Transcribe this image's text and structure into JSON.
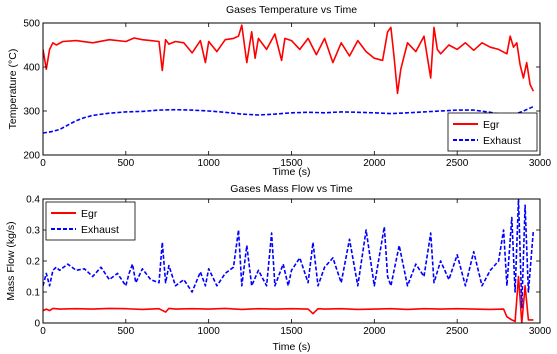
{
  "chart_data": [
    {
      "type": "line",
      "title": "Gases Temperature vs Time",
      "xlabel": "Time (s)",
      "ylabel": "Temperature (°C)",
      "xlim": [
        0,
        3000
      ],
      "ylim": [
        200,
        500
      ],
      "xticks": [
        0,
        500,
        1000,
        1500,
        2000,
        2500,
        3000
      ],
      "yticks": [
        200,
        300,
        400,
        500
      ],
      "legend_position": "bottom-right",
      "grid": false,
      "series": [
        {
          "name": "Egr",
          "color": "#ff0000",
          "style": "solid",
          "x": [
            0,
            20,
            40,
            60,
            80,
            120,
            200,
            300,
            400,
            500,
            550,
            600,
            650,
            700,
            720,
            740,
            760,
            800,
            850,
            900,
            950,
            980,
            1000,
            1050,
            1100,
            1150,
            1180,
            1200,
            1230,
            1260,
            1280,
            1300,
            1350,
            1400,
            1440,
            1460,
            1500,
            1550,
            1600,
            1650,
            1700,
            1750,
            1800,
            1850,
            1900,
            1950,
            2000,
            2050,
            2080,
            2100,
            2120,
            2140,
            2160,
            2200,
            2250,
            2300,
            2340,
            2360,
            2380,
            2400,
            2450,
            2500,
            2550,
            2600,
            2650,
            2700,
            2750,
            2800,
            2820,
            2840,
            2860,
            2880,
            2900,
            2920,
            2940,
            2960
          ],
          "y": [
            440,
            395,
            440,
            455,
            450,
            458,
            460,
            455,
            462,
            458,
            466,
            462,
            460,
            458,
            392,
            462,
            452,
            458,
            455,
            432,
            460,
            410,
            458,
            435,
            462,
            465,
            470,
            495,
            410,
            480,
            420,
            465,
            440,
            475,
            415,
            465,
            460,
            440,
            465,
            428,
            465,
            410,
            455,
            425,
            460,
            435,
            420,
            415,
            480,
            490,
            420,
            340,
            395,
            455,
            435,
            470,
            375,
            490,
            440,
            430,
            450,
            440,
            455,
            438,
            455,
            445,
            440,
            430,
            470,
            445,
            455,
            405,
            375,
            410,
            360,
            345
          ]
        },
        {
          "name": "Exhaust",
          "color": "#0000ff",
          "style": "dashed",
          "x": [
            0,
            50,
            100,
            150,
            200,
            250,
            300,
            400,
            500,
            600,
            700,
            800,
            900,
            1000,
            1100,
            1200,
            1300,
            1400,
            1500,
            1600,
            1700,
            1800,
            1900,
            2000,
            2100,
            2200,
            2300,
            2400,
            2500,
            2600,
            2700,
            2800,
            2850,
            2900,
            2960
          ],
          "y": [
            250,
            253,
            258,
            268,
            278,
            285,
            290,
            295,
            298,
            299,
            302,
            303,
            302,
            300,
            297,
            293,
            291,
            293,
            296,
            297,
            296,
            298,
            297,
            296,
            294,
            296,
            298,
            300,
            302,
            302,
            297,
            290,
            293,
            300,
            310
          ]
        }
      ]
    },
    {
      "type": "line",
      "title": "Gases Mass Flow vs Time",
      "xlabel": "Time (s)",
      "ylabel": "Mass Flow (kg/s)",
      "xlim": [
        0,
        3000
      ],
      "ylim": [
        0,
        0.4
      ],
      "xticks": [
        0,
        500,
        1000,
        1500,
        2000,
        2500,
        3000
      ],
      "yticks": [
        0,
        0.1,
        0.2,
        0.3,
        0.4
      ],
      "legend_position": "top-left",
      "grid": false,
      "series": [
        {
          "name": "Egr",
          "color": "#ff0000",
          "style": "solid",
          "x": [
            0,
            20,
            40,
            60,
            100,
            200,
            300,
            400,
            500,
            600,
            700,
            740,
            760,
            800,
            900,
            1000,
            1100,
            1200,
            1300,
            1400,
            1500,
            1600,
            1630,
            1660,
            1700,
            1800,
            1900,
            2000,
            2100,
            2200,
            2300,
            2400,
            2500,
            2600,
            2700,
            2780,
            2800,
            2830,
            2850,
            2870,
            2890,
            2910,
            2930,
            2960
          ],
          "y": [
            0.04,
            0.045,
            0.04,
            0.047,
            0.045,
            0.046,
            0.045,
            0.047,
            0.046,
            0.044,
            0.046,
            0.035,
            0.047,
            0.045,
            0.046,
            0.045,
            0.047,
            0.044,
            0.046,
            0.045,
            0.046,
            0.045,
            0.03,
            0.046,
            0.045,
            0.046,
            0.044,
            0.045,
            0.046,
            0.044,
            0.046,
            0.045,
            0.046,
            0.045,
            0.044,
            0.045,
            0.02,
            0.01,
            0.005,
            0.15,
            0.0,
            0.12,
            0.01,
            0.01
          ]
        },
        {
          "name": "Exhaust",
          "color": "#0000ff",
          "style": "dashed",
          "x": [
            0,
            20,
            40,
            60,
            80,
            100,
            150,
            200,
            250,
            300,
            350,
            400,
            450,
            500,
            520,
            540,
            560,
            600,
            650,
            700,
            720,
            740,
            760,
            800,
            850,
            900,
            950,
            980,
            1000,
            1050,
            1100,
            1150,
            1180,
            1200,
            1230,
            1260,
            1300,
            1350,
            1380,
            1400,
            1450,
            1480,
            1500,
            1550,
            1600,
            1630,
            1660,
            1700,
            1750,
            1800,
            1850,
            1900,
            1950,
            2000,
            2060,
            2080,
            2100,
            2150,
            2200,
            2250,
            2300,
            2340,
            2360,
            2400,
            2450,
            2500,
            2550,
            2600,
            2650,
            2700,
            2750,
            2780,
            2800,
            2830,
            2850,
            2870,
            2890,
            2910,
            2930,
            2960
          ],
          "y": [
            0.12,
            0.16,
            0.12,
            0.17,
            0.18,
            0.17,
            0.19,
            0.17,
            0.175,
            0.15,
            0.18,
            0.14,
            0.16,
            0.12,
            0.16,
            0.19,
            0.13,
            0.175,
            0.14,
            0.13,
            0.26,
            0.13,
            0.185,
            0.12,
            0.14,
            0.1,
            0.165,
            0.12,
            0.175,
            0.12,
            0.16,
            0.18,
            0.3,
            0.12,
            0.25,
            0.12,
            0.17,
            0.12,
            0.29,
            0.12,
            0.19,
            0.12,
            0.17,
            0.21,
            0.13,
            0.26,
            0.12,
            0.18,
            0.21,
            0.13,
            0.27,
            0.12,
            0.3,
            0.12,
            0.31,
            0.15,
            0.12,
            0.25,
            0.12,
            0.19,
            0.15,
            0.29,
            0.13,
            0.2,
            0.14,
            0.22,
            0.12,
            0.23,
            0.12,
            0.17,
            0.2,
            0.3,
            0.12,
            0.34,
            0.1,
            0.4,
            0.05,
            0.38,
            0.1,
            0.3
          ]
        }
      ]
    }
  ]
}
